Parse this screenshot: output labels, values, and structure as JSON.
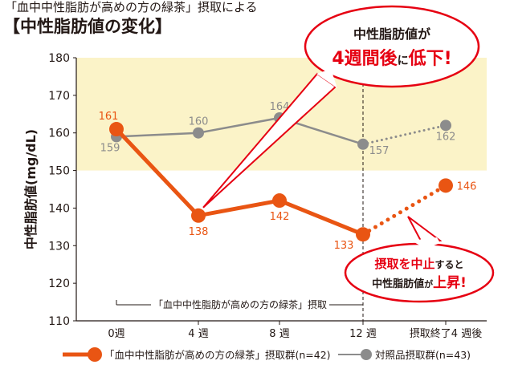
{
  "header": {
    "subtitle": "「血中中性脂肪が高めの方の緑茶」摂取による",
    "title": "【中性脂肪値の変化】"
  },
  "colors": {
    "test_series": "#e95513",
    "control_series": "#8c8c8c",
    "highlight_band": "#fbf3c8",
    "callout_red": "#e60012"
  },
  "chart_data": {
    "type": "line",
    "ylabel": "中性脂肪値(mg/dL)",
    "ylim": [
      110,
      180
    ],
    "yticks": [
      110,
      120,
      130,
      140,
      150,
      160,
      170,
      180
    ],
    "highlight_band": [
      150,
      180
    ],
    "categories": [
      "0週",
      "4 週",
      "8 週",
      "12 週",
      "摂取終了4 週後"
    ],
    "period_label": "「血中中性脂肪が高めの方の緑茶」摂取",
    "series": [
      {
        "name": "「血中中性脂肪が高めの方の緑茶」摂取群(n=42)",
        "values": [
          161,
          138,
          142,
          133,
          146
        ],
        "labels": [
          "161",
          "138",
          "142",
          "133",
          "146"
        ],
        "color": "#e95513"
      },
      {
        "name": "対照品摂取群(n=43)",
        "values": [
          159,
          160,
          164,
          157,
          162
        ],
        "labels": [
          "159",
          "160",
          "164",
          "157",
          "162"
        ],
        "color": "#8c8c8c"
      }
    ],
    "annotations": {
      "callout_top": {
        "line1": "中性脂肪値が",
        "big1": "4週間後",
        "small": "に",
        "big2": "低下!"
      },
      "callout_bottom": {
        "red1": "摂取を中止",
        "black1": "すると",
        "black2": "中性脂肪値",
        "small": "が",
        "red2": "上昇!"
      }
    }
  }
}
